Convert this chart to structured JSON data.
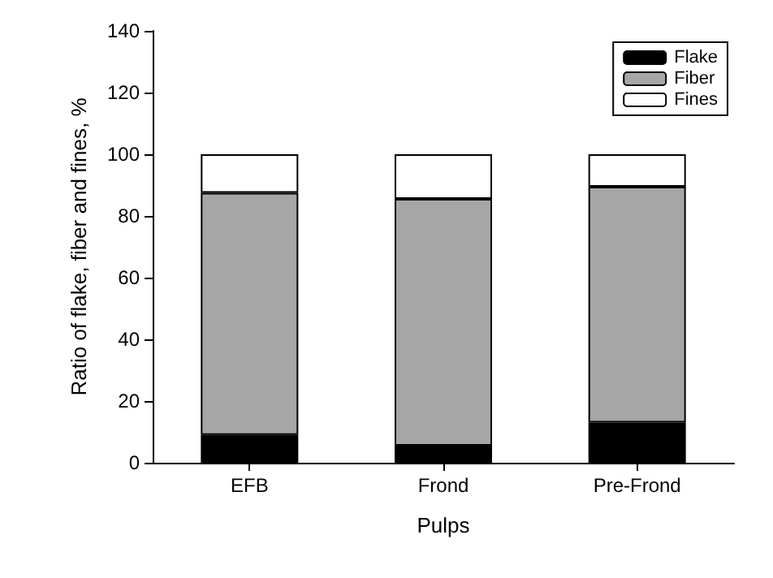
{
  "chart_data": {
    "type": "bar",
    "stacked": true,
    "xlabel": "Pulps",
    "ylabel": "Ratio of flake, fiber and fines, %",
    "categories": [
      "EFB",
      "Frond",
      "Pre-Frond"
    ],
    "series": [
      {
        "name": "Flake",
        "color": "#000000",
        "values": [
          9,
          5.5,
          13
        ]
      },
      {
        "name": "Fiber",
        "color": "#a6a6a6",
        "values": [
          78.5,
          80,
          76.5
        ]
      },
      {
        "name": "Fines",
        "color": "#ffffff",
        "values": [
          12.5,
          14.5,
          10.5
        ]
      }
    ],
    "ylim": [
      0,
      140
    ],
    "yticks": [
      0,
      20,
      40,
      60,
      80,
      100,
      120,
      140
    ],
    "grid": false,
    "legend": "top right"
  }
}
